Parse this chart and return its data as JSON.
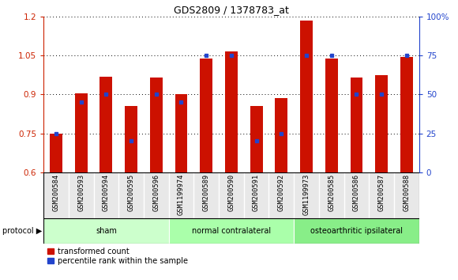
{
  "title": "GDS2809 / 1378783_at",
  "samples": [
    "GSM200584",
    "GSM200593",
    "GSM200594",
    "GSM200595",
    "GSM200596",
    "GSM1199974",
    "GSM200589",
    "GSM200590",
    "GSM200591",
    "GSM200592",
    "GSM1199973",
    "GSM200585",
    "GSM200586",
    "GSM200587",
    "GSM200588"
  ],
  "red_values": [
    0.75,
    0.905,
    0.97,
    0.855,
    0.965,
    0.9,
    1.04,
    1.065,
    0.855,
    0.885,
    1.185,
    1.04,
    0.965,
    0.975,
    1.045
  ],
  "blue_percentiles": [
    25,
    45,
    50,
    20,
    50,
    45,
    75,
    75,
    20,
    25,
    75,
    75,
    50,
    50,
    75
  ],
  "groups": [
    {
      "label": "sham",
      "start": 0,
      "end": 5,
      "color": "#ccffcc"
    },
    {
      "label": "normal contralateral",
      "start": 5,
      "end": 10,
      "color": "#aaffaa"
    },
    {
      "label": "osteoarthritic ipsilateral",
      "start": 10,
      "end": 15,
      "color": "#88ee88"
    }
  ],
  "ylim_left": [
    0.6,
    1.2
  ],
  "ylim_right": [
    0,
    100
  ],
  "yticks_left": [
    0.6,
    0.75,
    0.9,
    1.05,
    1.2
  ],
  "yticks_right": [
    0,
    25,
    50,
    75,
    100
  ],
  "ytick_labels_right": [
    "0",
    "25",
    "50",
    "75",
    "100%"
  ],
  "bar_color": "#cc1100",
  "blue_color": "#2244cc",
  "bar_width": 0.5,
  "left_axis_color": "#cc2200",
  "right_axis_color": "#2244cc",
  "bg_color": "#ffffff"
}
